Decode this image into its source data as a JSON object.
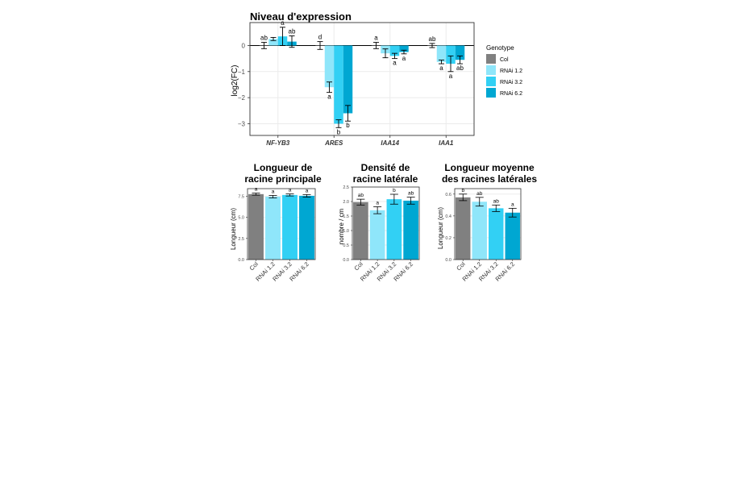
{
  "colors": {
    "Col": "#808080",
    "RNAi 1.2": "#8fe6fa",
    "RNAi 3.2": "#32d0f4",
    "RNAi 6.2": "#00a7d2"
  },
  "legend": {
    "title": "Genotype",
    "placement": "right",
    "items": [
      "Col",
      "RNAi 1.2",
      "RNAi 3.2",
      "RNAi 6.2"
    ]
  },
  "chart_data": [
    {
      "id": "expression",
      "type": "bar",
      "title": "Niveau d'expression",
      "xlabel": "",
      "ylabel": "log2(FC)",
      "ylim": [
        -3.45,
        0.88
      ],
      "yticks": [
        0,
        -1,
        -2,
        -3
      ],
      "yticklabels": [
        "0",
        "−1",
        "−2",
        "−3"
      ],
      "grid": true,
      "categories": [
        "NF-YB3",
        "ARES",
        "IAA14",
        "IAA1"
      ],
      "series": [
        {
          "name": "Col",
          "values": [
            0.0,
            0.0,
            0.0,
            0.0
          ],
          "errors": [
            0.12,
            0.15,
            0.12,
            0.08
          ],
          "labels": [
            "ab",
            "d",
            "a",
            "ab"
          ]
        },
        {
          "name": "RNAi 1.2",
          "values": [
            0.25,
            -1.6,
            -0.3,
            -0.63
          ],
          "errors": [
            0.06,
            0.2,
            0.17,
            0.07
          ],
          "labels": [
            "",
            "a",
            "",
            "a"
          ]
        },
        {
          "name": "RNAi 3.2",
          "values": [
            0.35,
            -3.0,
            -0.4,
            -0.7
          ],
          "errors": [
            0.35,
            0.15,
            0.1,
            0.3
          ],
          "labels": [
            "a",
            "b",
            "a",
            "a"
          ]
        },
        {
          "name": "RNAi 6.2",
          "values": [
            0.15,
            -2.6,
            -0.25,
            -0.55
          ],
          "errors": [
            0.22,
            0.3,
            0.07,
            0.15
          ],
          "labels": [
            "ab",
            "b",
            "a",
            "ab"
          ]
        }
      ]
    },
    {
      "id": "main-root-length",
      "type": "bar",
      "title": "Longueur de racine principale",
      "title_lines": [
        "Longueur de",
        "racine principale"
      ],
      "xlabel": "",
      "ylabel": "Longueur (cm)",
      "ylim": [
        0,
        8.4
      ],
      "yticks": [
        0,
        2.5,
        5,
        7.5
      ],
      "yticklabels": [
        "0.0",
        "2.5",
        "5.0",
        "7.5"
      ],
      "grid": true,
      "categories": [
        "Col",
        "RNAi 1.2",
        "RNAi 3.2",
        "RNAi 6.2"
      ],
      "values": [
        7.75,
        7.45,
        7.65,
        7.55
      ],
      "errors": [
        0.12,
        0.15,
        0.12,
        0.15
      ],
      "labels": [
        "a",
        "a",
        "a",
        "a"
      ]
    },
    {
      "id": "lateral-root-density",
      "type": "bar",
      "title": "Densité de racine latérale",
      "title_lines": [
        "Densité de",
        "racine latérale"
      ],
      "xlabel": "",
      "ylabel": "nombre / cm",
      "ylim": [
        0,
        2.5
      ],
      "yticks": [
        0,
        0.5,
        1,
        1.5,
        2,
        2.5
      ],
      "yticklabels": [
        "0.0",
        "0.5",
        "1.0",
        "1.5",
        "2.0",
        "2.5"
      ],
      "grid": true,
      "categories": [
        "Col",
        "RNAi 1.2",
        "RNAi 3.2",
        "RNAi 6.2"
      ],
      "values": [
        1.98,
        1.7,
        2.08,
        2.03
      ],
      "errors": [
        0.1,
        0.12,
        0.17,
        0.12
      ],
      "labels": [
        "ab",
        "a",
        "b",
        "ab"
      ]
    },
    {
      "id": "mean-lateral-root-length",
      "type": "bar",
      "title": "Longueur moyenne des racines latérales",
      "title_lines": [
        "Longueur moyenne",
        "des racines latérales"
      ],
      "xlabel": "",
      "ylabel": "Longueur (cm)",
      "ylim": [
        0,
        0.65
      ],
      "yticks": [
        0,
        0.2,
        0.4,
        0.6
      ],
      "yticklabels": [
        "0.0",
        "0.2",
        "0.4",
        "0.6"
      ],
      "grid": true,
      "categories": [
        "Col",
        "RNAi 1.2",
        "RNAi 3.2",
        "RNAi 6.2"
      ],
      "values": [
        0.57,
        0.53,
        0.47,
        0.43
      ],
      "errors": [
        0.03,
        0.04,
        0.03,
        0.04
      ],
      "labels": [
        "b",
        "ab",
        "ab",
        "a"
      ]
    }
  ]
}
